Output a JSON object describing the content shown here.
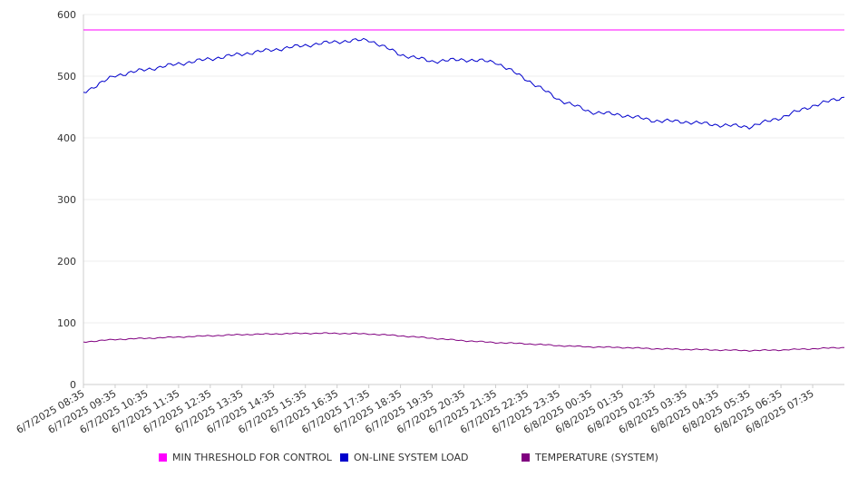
{
  "chart_data": {
    "type": "line",
    "title": "",
    "xlabel": "",
    "ylabel": "",
    "ylim": [
      0,
      600
    ],
    "yticks": [
      0,
      100,
      200,
      300,
      400,
      500,
      600
    ],
    "grid": true,
    "legend_position": "bottom",
    "x_tick_labels": [
      "6/7/2025 08:35",
      "6/7/2025 09:35",
      "6/7/2025 10:35",
      "6/7/2025 11:35",
      "6/7/2025 12:35",
      "6/7/2025 13:35",
      "6/7/2025 14:35",
      "6/7/2025 15:35",
      "6/7/2025 16:35",
      "6/7/2025 17:35",
      "6/7/2025 18:35",
      "6/7/2025 19:35",
      "6/7/2025 20:35",
      "6/7/2025 21:35",
      "6/7/2025 22:35",
      "6/7/2025 23:35",
      "6/8/2025 00:35",
      "6/8/2025 01:35",
      "6/8/2025 02:35",
      "6/8/2025 03:35",
      "6/8/2025 04:35",
      "6/8/2025 05:35",
      "6/8/2025 06:35",
      "6/8/2025 07:35"
    ],
    "x": [
      "6/7/2025 08:35",
      "6/7/2025 09:35",
      "6/7/2025 10:35",
      "6/7/2025 11:35",
      "6/7/2025 12:35",
      "6/7/2025 13:35",
      "6/7/2025 14:35",
      "6/7/2025 15:35",
      "6/7/2025 16:35",
      "6/7/2025 17:35",
      "6/7/2025 18:35",
      "6/7/2025 19:35",
      "6/7/2025 20:35",
      "6/7/2025 21:35",
      "6/7/2025 22:35",
      "6/7/2025 23:35",
      "6/8/2025 00:35",
      "6/8/2025 01:35",
      "6/8/2025 02:35",
      "6/8/2025 03:35",
      "6/8/2025 04:35",
      "6/8/2025 05:35",
      "6/8/2025 06:35",
      "6/8/2025 07:35",
      "6/8/2025 08:35"
    ],
    "series": [
      {
        "name": "MIN THRESHOLD FOR CONTROL",
        "color": "#ff00ff",
        "values": [
          575,
          575,
          575,
          575,
          575,
          575,
          575,
          575,
          575,
          575,
          575,
          575,
          575,
          575,
          575,
          575,
          575,
          575,
          575,
          575,
          575,
          575,
          575,
          575,
          575
        ]
      },
      {
        "name": "ON-LINE SYSTEM LOAD",
        "color": "#0000cc",
        "values": [
          474,
          501,
          511,
          520,
          528,
          536,
          543,
          550,
          556,
          559,
          535,
          524,
          527,
          523,
          494,
          462,
          442,
          437,
          428,
          426,
          421,
          418,
          433,
          452,
          466
        ]
      },
      {
        "name": "TEMPERATURE (SYSTEM)",
        "color": "#800080",
        "values": [
          69,
          73,
          75,
          77,
          79,
          81,
          82,
          83,
          83,
          82,
          79,
          75,
          71,
          68,
          66,
          63,
          61,
          60,
          58,
          57,
          56,
          55,
          56,
          58,
          60
        ]
      }
    ]
  }
}
